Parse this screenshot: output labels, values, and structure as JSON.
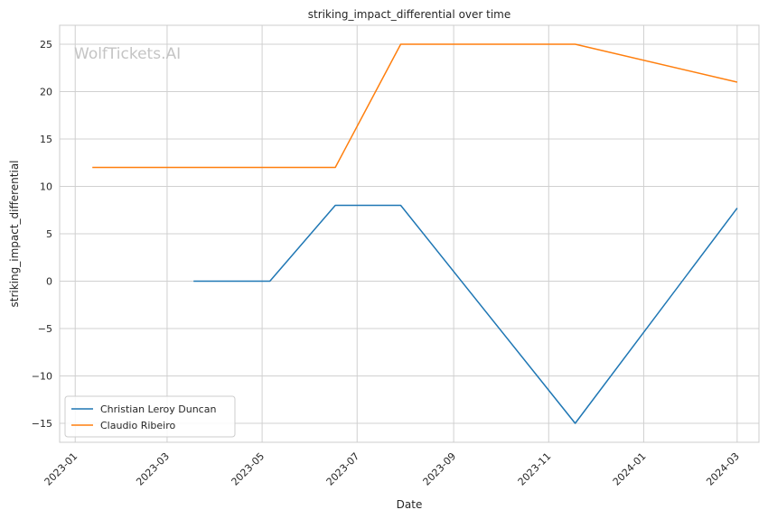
{
  "chart_data": {
    "type": "line",
    "title": "striking_impact_differential over time",
    "xlabel": "Date",
    "ylabel": "striking_impact_differential",
    "watermark": "WolfTickets.AI",
    "x_tick_labels": [
      "2023-01",
      "2023-03",
      "2023-05",
      "2023-07",
      "2023-09",
      "2023-11",
      "2024-01",
      "2024-03"
    ],
    "x_tick_dates": [
      "2023-01-01",
      "2023-03-01",
      "2023-05-01",
      "2023-07-01",
      "2023-09-01",
      "2023-11-01",
      "2024-01-01",
      "2024-03-01"
    ],
    "xlim": [
      "2022-12-22",
      "2024-03-15"
    ],
    "y_ticks": [
      -15,
      -10,
      -5,
      0,
      5,
      10,
      15,
      20,
      25
    ],
    "y_tick_labels": [
      "−15",
      "−10",
      "−5",
      "0",
      "5",
      "10",
      "15",
      "20",
      "25"
    ],
    "ylim": [
      -17,
      27
    ],
    "grid": true,
    "legend_position": "lower-left",
    "series": [
      {
        "name": "Christian Leroy Duncan",
        "color": "#1f77b4",
        "points": [
          {
            "x": "2023-03-18",
            "y": 0
          },
          {
            "x": "2023-05-06",
            "y": 0
          },
          {
            "x": "2023-06-17",
            "y": 8
          },
          {
            "x": "2023-07-29",
            "y": 8
          },
          {
            "x": "2023-11-18",
            "y": -15
          },
          {
            "x": "2024-03-01",
            "y": 7.7
          }
        ]
      },
      {
        "name": "Claudio Ribeiro",
        "color": "#ff7f0e",
        "points": [
          {
            "x": "2023-01-12",
            "y": 12
          },
          {
            "x": "2023-06-17",
            "y": 12
          },
          {
            "x": "2023-07-29",
            "y": 25
          },
          {
            "x": "2023-11-18",
            "y": 25
          },
          {
            "x": "2024-03-01",
            "y": 21
          }
        ]
      }
    ]
  }
}
